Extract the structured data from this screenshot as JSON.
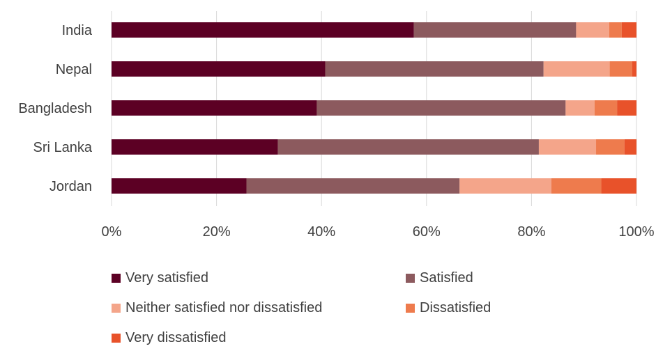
{
  "chart_data": {
    "type": "bar",
    "orientation": "horizontal",
    "stacked": true,
    "percent": true,
    "categories": [
      "India",
      "Nepal",
      "Bangladesh",
      "Sri Lanka",
      "Jordan"
    ],
    "series": [
      {
        "name": "Very satisfied",
        "color": "#5c0024",
        "values": [
          57.6,
          40.7,
          39.1,
          31.7,
          25.7
        ]
      },
      {
        "name": "Satisfied",
        "color": "#8c5a5e",
        "values": [
          30.9,
          41.6,
          47.4,
          49.7,
          40.6
        ]
      },
      {
        "name": "Neither satisfied nor dissatisfied",
        "color": "#f4a58a",
        "values": [
          6.3,
          12.6,
          5.5,
          10.9,
          17.5
        ]
      },
      {
        "name": "Dissatisfied",
        "color": "#ee7b4d",
        "values": [
          2.4,
          4.3,
          4.3,
          5.4,
          9.5
        ]
      },
      {
        "name": "Very dissatisfied",
        "color": "#e8522a",
        "values": [
          2.8,
          0.8,
          3.7,
          2.3,
          6.7
        ]
      }
    ],
    "xlim": [
      0,
      100
    ],
    "x_ticks": [
      "0%",
      "20%",
      "40%",
      "60%",
      "80%",
      "100%"
    ],
    "grid": "vertical",
    "legend_position": "bottom",
    "title": "",
    "xlabel": "",
    "ylabel": ""
  }
}
